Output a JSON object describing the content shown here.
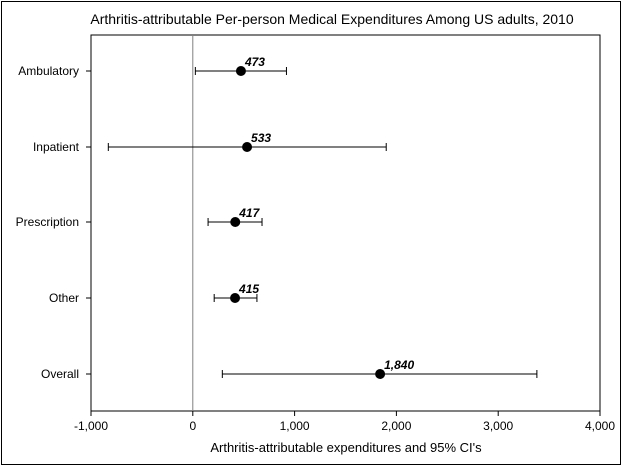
{
  "chart_data": {
    "type": "scatter",
    "title": "Arthritis-attributable Per-person Medical Expenditures Among US adults, 2010",
    "xlabel": "Arthritis-attributable expenditures and 95% CI's",
    "ylabel": "",
    "xlim": [
      -1000,
      4000
    ],
    "xticks": [
      -1000,
      0,
      1000,
      2000,
      3000,
      4000
    ],
    "xtick_labels": [
      "-1,000",
      "0",
      "1,000",
      "2,000",
      "3,000",
      "4,000"
    ],
    "grid": false,
    "legend": "none",
    "categories": [
      "Ambulatory",
      "Inpatient",
      "Prescription",
      "Other",
      "Overall"
    ],
    "values": [
      473,
      533,
      417,
      415,
      1840
    ],
    "value_labels": [
      "473",
      "533",
      "417",
      "415",
      "1,840"
    ],
    "ci_lower": [
      25,
      -830,
      150,
      210,
      290
    ],
    "ci_upper": [
      920,
      1900,
      680,
      630,
      3380
    ],
    "reference_line_x": 0,
    "colors": {
      "marker": "#000000",
      "axis": "#000000",
      "reference_line": "#808080"
    }
  }
}
